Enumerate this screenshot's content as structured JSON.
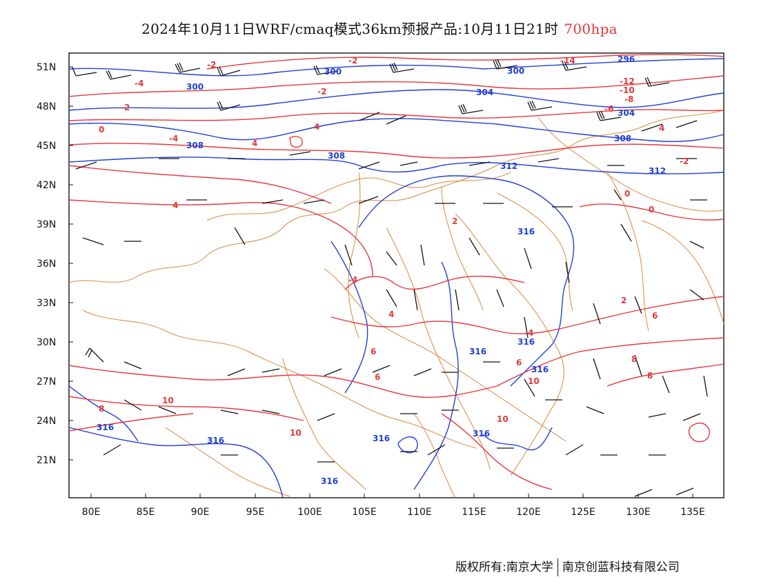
{
  "title": {
    "main": "2024年10月11日WRF/cmaq模式36km预报产品:10月11日21时",
    "level": "700hpa"
  },
  "axes": {
    "lat_labels": [
      "51N",
      "48N",
      "45N",
      "42N",
      "39N",
      "36N",
      "33N",
      "30N",
      "27N",
      "24N",
      "21N"
    ],
    "lon_labels": [
      "80E",
      "85E",
      "90E",
      "95E",
      "100E",
      "105E",
      "110E",
      "115E",
      "120E",
      "125E",
      "130E",
      "135E"
    ]
  },
  "contour_labels": {
    "height": [
      "296",
      "300",
      "300",
      "300",
      "304",
      "304",
      "308",
      "308",
      "308",
      "312",
      "312",
      "316",
      "316",
      "316",
      "316",
      "316",
      "316",
      "316",
      "316",
      "316"
    ],
    "temperature": [
      "-14",
      "-12",
      "-10",
      "-8",
      "-6",
      "-4",
      "-2",
      "-2",
      "-2",
      "-2",
      "-2",
      "-4",
      "-4",
      "-4",
      "0",
      "0",
      "0",
      "2",
      "2",
      "4",
      "4",
      "4",
      "4",
      "4",
      "6",
      "6",
      "6",
      "6",
      "8",
      "8",
      "8",
      "10",
      "10",
      "10",
      "10"
    ]
  },
  "colors": {
    "temperature": "#e8363a",
    "height": "#1f3fd8",
    "boundary": "#d9873a",
    "wind": "#111111",
    "level_text": "#e8363a"
  },
  "footer": {
    "left": "版权所有:南京大学",
    "right": "南京创蓝科技有限公司"
  }
}
